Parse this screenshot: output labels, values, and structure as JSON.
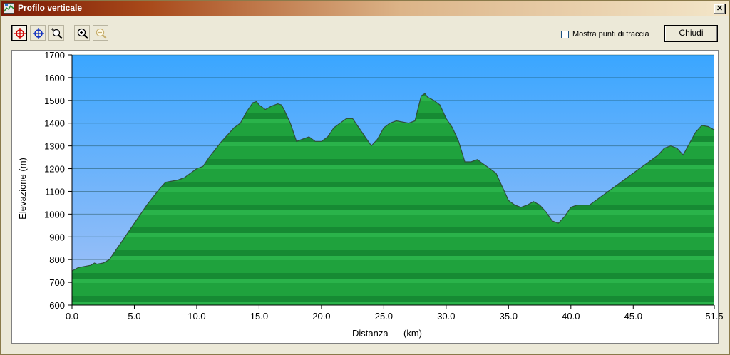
{
  "window": {
    "title": "Profilo verticale"
  },
  "toolbar": {
    "buttons": [
      {
        "name": "select-point-tool",
        "icon": "red-crosshair-icon",
        "pressed": true
      },
      {
        "name": "move-tool",
        "icon": "blue-crosshair-icon",
        "pressed": false
      },
      {
        "name": "zoom-area-tool",
        "icon": "zoom-area-icon",
        "pressed": false
      },
      {
        "name": "zoom-in-tool",
        "icon": "zoom-in-icon",
        "pressed": false
      },
      {
        "name": "zoom-out-tool",
        "icon": "zoom-out-icon",
        "pressed": false,
        "disabled": true
      }
    ],
    "show_points_label": "Mostra punti di traccia",
    "show_points_checked": false,
    "close_label": "Chiudi"
  },
  "colors": {
    "sky_top": "#3ea7ff",
    "sky_bottom": "#a8c4f8",
    "terrain": "#1fa23d",
    "terrain_dark": "#137a2a",
    "titlebar": "#7a1a05"
  },
  "chart_data": {
    "type": "area",
    "xlabel": "Distanza",
    "xunit": "(km)",
    "ylabel": "Elevazione (m)",
    "xlim": [
      0,
      51.5
    ],
    "ylim": [
      600,
      1700
    ],
    "x_ticks": [
      "0.0",
      "5.0",
      "10.0",
      "15.0",
      "20.0",
      "25.0",
      "30.0",
      "35.0",
      "40.0",
      "45.0",
      "51.5"
    ],
    "y_ticks": [
      "600",
      "700",
      "800",
      "900",
      "1000",
      "1100",
      "1200",
      "1300",
      "1400",
      "1500",
      "1600",
      "1700"
    ],
    "grid": true,
    "x": [
      0,
      0.5,
      1,
      1.5,
      1.8,
      2,
      2.5,
      3,
      3.5,
      4,
      5,
      6,
      7,
      7.5,
      8,
      8.5,
      9,
      10,
      10.5,
      11,
      12,
      12.5,
      13,
      13.5,
      14,
      14.5,
      14.8,
      15,
      15.5,
      16,
      16.5,
      16.8,
      17,
      17.5,
      18,
      18.5,
      19,
      19.5,
      20,
      20.5,
      21,
      21.5,
      22,
      22.5,
      23,
      23.5,
      24,
      24.5,
      25,
      25.5,
      26,
      26.5,
      27,
      27.5,
      28,
      28.3,
      28.5,
      29,
      29.5,
      30,
      30.5,
      31,
      31.5,
      32,
      32.5,
      33,
      33.5,
      34,
      34.5,
      35,
      35.5,
      36,
      36.5,
      37,
      37.5,
      38,
      38.5,
      39,
      39.5,
      40,
      40.5,
      41,
      41.5,
      42,
      43,
      44,
      45,
      46,
      47,
      47.5,
      48,
      48.5,
      49,
      49.5,
      50,
      50.5,
      51,
      51.5
    ],
    "y": [
      750,
      765,
      770,
      775,
      785,
      780,
      785,
      800,
      840,
      880,
      960,
      1040,
      1110,
      1140,
      1145,
      1150,
      1160,
      1200,
      1210,
      1250,
      1320,
      1350,
      1380,
      1400,
      1450,
      1490,
      1495,
      1480,
      1460,
      1475,
      1485,
      1480,
      1460,
      1400,
      1320,
      1330,
      1340,
      1320,
      1320,
      1340,
      1380,
      1400,
      1420,
      1420,
      1380,
      1340,
      1300,
      1330,
      1380,
      1400,
      1410,
      1405,
      1400,
      1410,
      1520,
      1530,
      1515,
      1500,
      1480,
      1420,
      1380,
      1320,
      1230,
      1230,
      1240,
      1220,
      1200,
      1180,
      1120,
      1060,
      1040,
      1030,
      1040,
      1055,
      1040,
      1010,
      970,
      960,
      990,
      1030,
      1040,
      1040,
      1040,
      1060,
      1100,
      1140,
      1180,
      1220,
      1260,
      1290,
      1300,
      1290,
      1260,
      1310,
      1360,
      1390,
      1385,
      1370
    ]
  }
}
